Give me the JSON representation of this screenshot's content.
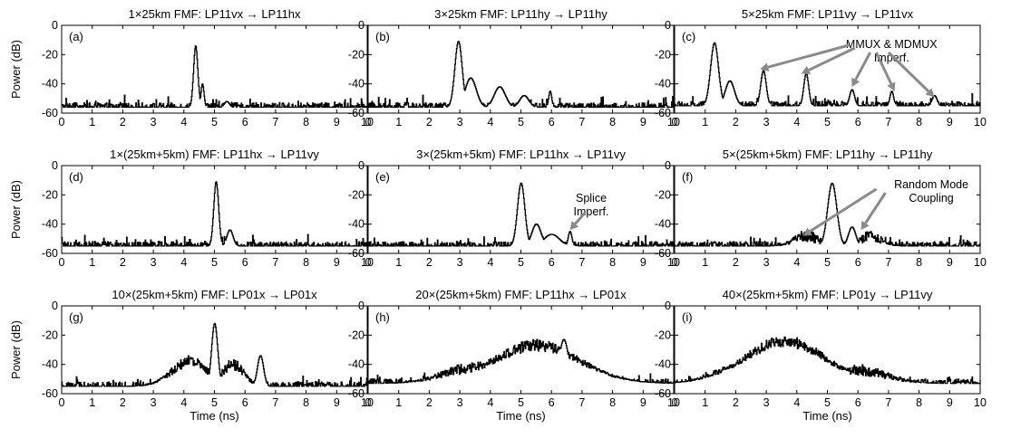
{
  "figure": {
    "ylabel": "Power (dB)",
    "xlabel": "Time (ns)"
  },
  "chart_data": [
    {
      "type": "line",
      "panel_label": "(a)",
      "title": "1×25km FMF: LP11vx → LP11hx",
      "xlim": [
        0,
        10
      ],
      "ylim": [
        -60,
        0
      ],
      "xticks": [
        "0",
        "1",
        "2",
        "3",
        "4",
        "5",
        "6",
        "7",
        "8",
        "9",
        "10"
      ],
      "yticks": [
        "-60",
        "-40",
        "-20",
        "0"
      ],
      "ylabel": "Power (dB)",
      "xlabel": "",
      "noise_floor": -56,
      "peaks": [
        [
          4.38,
          -14,
          0.07
        ],
        [
          4.6,
          -40,
          0.05
        ],
        [
          5.4,
          -52,
          0.08
        ]
      ],
      "annotations": []
    },
    {
      "type": "line",
      "panel_label": "(b)",
      "title": "3×25km FMF: LP11hy → LP11hy",
      "xlim": [
        0,
        10
      ],
      "ylim": [
        -60,
        0
      ],
      "xticks": [
        "0",
        "1",
        "2",
        "3",
        "4",
        "5",
        "6",
        "7",
        "8",
        "9",
        "10"
      ],
      "yticks": [
        "-60",
        "-40",
        "-20",
        "0"
      ],
      "ylabel": "",
      "xlabel": "",
      "noise_floor": -56,
      "peaks": [
        [
          2.95,
          -11,
          0.12
        ],
        [
          3.35,
          -36,
          0.18
        ],
        [
          4.3,
          -42,
          0.18
        ],
        [
          5.1,
          -48,
          0.15
        ],
        [
          5.95,
          -45,
          0.05
        ]
      ],
      "annotations": []
    },
    {
      "type": "line",
      "panel_label": "(c)",
      "title": "5×25km FMF: LP11vy → LP11vx",
      "xlim": [
        0,
        10
      ],
      "ylim": [
        -60,
        0
      ],
      "xticks": [
        "0",
        "1",
        "2",
        "3",
        "4",
        "5",
        "6",
        "7",
        "8",
        "9",
        "10"
      ],
      "yticks": [
        "-60",
        "-40",
        "-20",
        "0"
      ],
      "ylabel": "",
      "xlabel": "",
      "noise_floor": -55,
      "peaks": [
        [
          1.3,
          -12,
          0.13
        ],
        [
          1.8,
          -38,
          0.15
        ],
        [
          2.9,
          -31,
          0.09
        ],
        [
          4.3,
          -33,
          0.08
        ],
        [
          5.8,
          -44,
          0.08
        ],
        [
          7.1,
          -45,
          0.06
        ],
        [
          8.5,
          -48,
          0.08
        ]
      ],
      "annotations": [
        {
          "text": [
            "MMUX & MDMUX",
            "Imperf."
          ],
          "arrows": [
            [
              2.8,
              -30
            ],
            [
              4.15,
              -33
            ],
            [
              5.8,
              -42
            ],
            [
              7.2,
              -45
            ],
            [
              8.5,
              -49
            ]
          ]
        }
      ]
    },
    {
      "type": "line",
      "panel_label": "(d)",
      "title": "1×(25km+5km) FMF: LP11hx → LP11vy",
      "xlim": [
        0,
        10
      ],
      "ylim": [
        -60,
        0
      ],
      "xticks": [
        "0",
        "1",
        "2",
        "3",
        "4",
        "5",
        "6",
        "7",
        "8",
        "9",
        "10"
      ],
      "yticks": [
        "-60",
        "-40",
        "-20",
        "0"
      ],
      "ylabel": "Power (dB)",
      "xlabel": "",
      "noise_floor": -55,
      "peaks": [
        [
          5.05,
          -11,
          0.08
        ],
        [
          5.5,
          -44,
          0.1
        ]
      ],
      "annotations": []
    },
    {
      "type": "line",
      "panel_label": "(e)",
      "title": "3×(25km+5km) FMF: LP11hx → LP11vy",
      "xlim": [
        0,
        10
      ],
      "ylim": [
        -60,
        0
      ],
      "xticks": [
        "0",
        "1",
        "2",
        "3",
        "4",
        "5",
        "6",
        "7",
        "8",
        "9",
        "10"
      ],
      "yticks": [
        "-60",
        "-40",
        "-20",
        "0"
      ],
      "ylabel": "",
      "xlabel": "",
      "noise_floor": -55,
      "peaks": [
        [
          5.0,
          -12,
          0.12
        ],
        [
          5.5,
          -40,
          0.15
        ],
        [
          6.0,
          -47,
          0.25
        ],
        [
          6.6,
          -45,
          0.06
        ]
      ],
      "annotations": [
        {
          "text": [
            "Splice",
            "Imperf."
          ],
          "arrows": [
            [
              6.6,
              -44
            ]
          ]
        }
      ]
    },
    {
      "type": "line",
      "panel_label": "(f)",
      "title": "5×(25km+5km) FMF: LP11hy → LP11hy",
      "xlim": [
        0,
        10
      ],
      "ylim": [
        -60,
        0
      ],
      "xticks": [
        "0",
        "1",
        "2",
        "3",
        "4",
        "5",
        "6",
        "7",
        "8",
        "9",
        "10"
      ],
      "yticks": [
        "-60",
        "-40",
        "-20",
        "0"
      ],
      "ylabel": "",
      "xlabel": "",
      "noise_floor": -55,
      "peaks": [
        [
          5.15,
          -12,
          0.15
        ],
        [
          4.3,
          -48,
          0.4
        ],
        [
          5.8,
          -42,
          0.12
        ],
        [
          6.4,
          -48,
          0.35
        ]
      ],
      "annotations": [
        {
          "text": [
            "Random Mode",
            "Coupling"
          ],
          "arrows": [
            [
              4.2,
              -48
            ],
            [
              6.1,
              -44
            ]
          ]
        }
      ]
    },
    {
      "type": "line",
      "panel_label": "(g)",
      "title": "10×(25km+5km) FMF: LP01x → LP01x",
      "xlim": [
        0,
        10
      ],
      "ylim": [
        -60,
        0
      ],
      "xticks": [
        "0",
        "1",
        "2",
        "3",
        "4",
        "5",
        "6",
        "7",
        "8",
        "9",
        "10"
      ],
      "yticks": [
        "-60",
        "-40",
        "-20",
        "0"
      ],
      "ylabel": "Power (dB)",
      "xlabel": "Time (ns)",
      "noise_floor": -55,
      "peaks": [
        [
          5.0,
          -12,
          0.1
        ],
        [
          4.2,
          -38,
          0.6
        ],
        [
          5.6,
          -40,
          0.35
        ],
        [
          6.5,
          -34,
          0.1
        ]
      ],
      "annotations": []
    },
    {
      "type": "line",
      "panel_label": "(h)",
      "title": "20×(25km+5km) FMF: LP11hx → LP01x",
      "xlim": [
        0,
        10
      ],
      "ylim": [
        -60,
        0
      ],
      "xticks": [
        "0",
        "1",
        "2",
        "3",
        "4",
        "5",
        "6",
        "7",
        "8",
        "9",
        "10"
      ],
      "yticks": [
        "-60",
        "-40",
        "-20",
        "0"
      ],
      "ylabel": "",
      "xlabel": "Time (ns)",
      "noise_floor": -53,
      "peaks": [
        [
          5.5,
          -27,
          1.4
        ],
        [
          6.4,
          -23,
          0.15
        ],
        [
          3.5,
          -42,
          1.0
        ]
      ],
      "annotations": []
    },
    {
      "type": "line",
      "panel_label": "(i)",
      "title": "40×(25km+5km) FMF: LP01y → LP11vy",
      "xlim": [
        0,
        10
      ],
      "ylim": [
        -60,
        0
      ],
      "xticks": [
        "0",
        "1",
        "2",
        "3",
        "4",
        "5",
        "6",
        "7",
        "8",
        "9",
        "10"
      ],
      "yticks": [
        "-60",
        "-40",
        "-20",
        "0"
      ],
      "ylabel": "",
      "xlabel": "Time (ns)",
      "noise_floor": -53,
      "peaks": [
        [
          3.6,
          -24,
          1.3
        ],
        [
          2.0,
          -44,
          0.8
        ],
        [
          6.0,
          -44,
          0.9
        ]
      ],
      "annotations": []
    }
  ]
}
